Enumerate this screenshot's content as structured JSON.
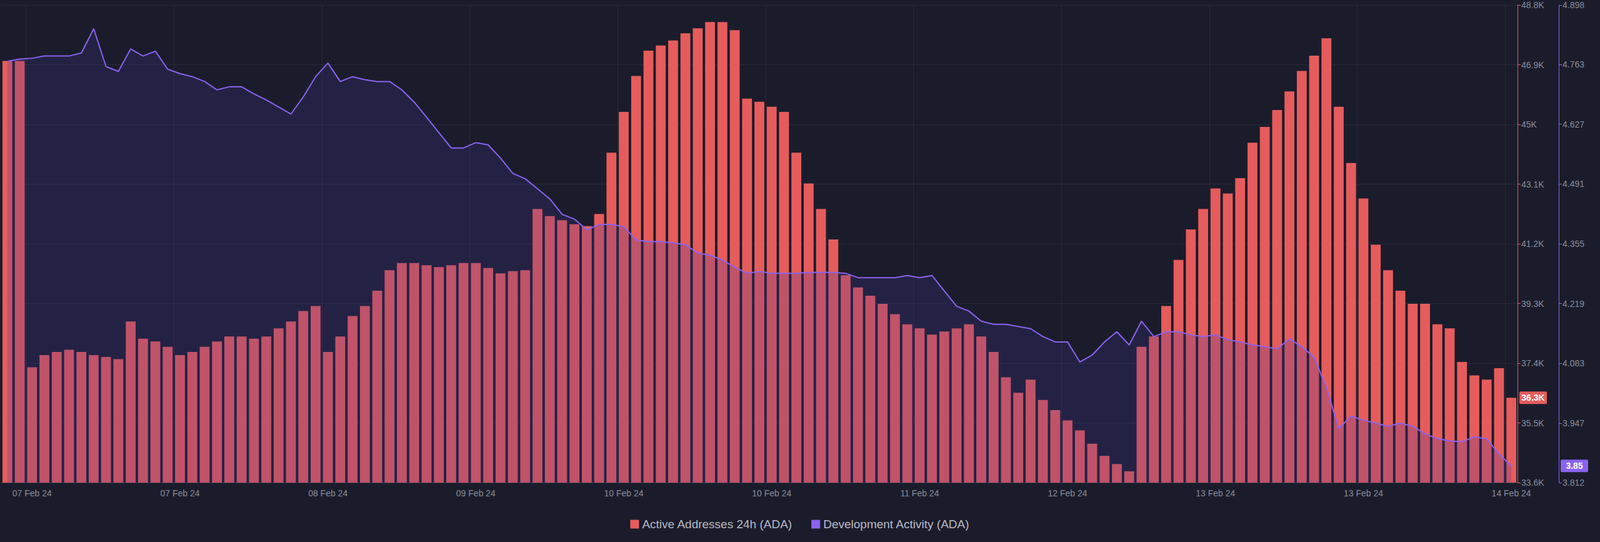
{
  "chart_data": {
    "type": "bar",
    "categories": [
      null,
      null,
      "07 Feb 24",
      null,
      null,
      null,
      null,
      null,
      null,
      null,
      null,
      null,
      null,
      null,
      "07 Feb 24",
      null,
      null,
      null,
      null,
      null,
      null,
      null,
      null,
      null,
      null,
      null,
      "08 Feb 24",
      null,
      null,
      null,
      null,
      null,
      null,
      null,
      null,
      null,
      null,
      null,
      "09 Feb 24",
      null,
      null,
      null,
      null,
      null,
      null,
      null,
      null,
      null,
      null,
      null,
      "10 Feb 24",
      null,
      null,
      null,
      null,
      null,
      null,
      null,
      null,
      null,
      null,
      null,
      "10 Feb 24",
      null,
      null,
      null,
      null,
      null,
      null,
      null,
      null,
      null,
      null,
      null,
      "11 Feb 24",
      null,
      null,
      null,
      null,
      null,
      null,
      null,
      null,
      null,
      null,
      null,
      "12 Feb 24",
      null,
      null,
      null,
      null,
      null,
      null,
      null,
      null,
      null,
      null,
      null,
      "13 Feb 24",
      null,
      null,
      null,
      null,
      null,
      null,
      null,
      null,
      null,
      null,
      null,
      "13 Feb 24",
      null,
      null,
      null,
      null,
      null,
      null,
      null,
      null,
      null,
      null,
      null,
      "14 Feb 24"
    ],
    "series": [
      {
        "name": "Active Addresses 24h (ADA)",
        "type": "bar",
        "color": "#e65c5c",
        "axis": "y",
        "values": [
          47020,
          47020,
          37270,
          37660,
          37760,
          37830,
          37760,
          37660,
          37600,
          37530,
          38730,
          38180,
          38090,
          37920,
          37660,
          37760,
          37920,
          38090,
          38250,
          38250,
          38180,
          38250,
          38510,
          38730,
          39060,
          39220,
          37760,
          38250,
          38900,
          39220,
          39710,
          40360,
          40590,
          40590,
          40520,
          40460,
          40520,
          40590,
          40590,
          40430,
          40260,
          40330,
          40360,
          42310,
          42080,
          41950,
          41820,
          41760,
          42150,
          44100,
          45400,
          46540,
          47350,
          47510,
          47670,
          47900,
          48060,
          48260,
          48260,
          48000,
          45820,
          45720,
          45560,
          45400,
          44100,
          43120,
          42310,
          41340,
          40200,
          39810,
          39550,
          39290,
          38960,
          38640,
          38510,
          38310,
          38410,
          38510,
          38640,
          38250,
          37760,
          36950,
          36460,
          36880,
          36230,
          35910,
          35580,
          35260,
          34840,
          34450,
          34190,
          33960,
          37920,
          38250,
          39220,
          40690,
          41660,
          42310,
          42960,
          42800,
          43290,
          44420,
          44920,
          45460,
          46050,
          46700,
          47190,
          47740,
          45560,
          43770,
          42640,
          41170,
          40360,
          39710,
          39290,
          39290,
          38640,
          38510,
          37440,
          37010,
          36880,
          37240,
          36300
        ]
      },
      {
        "name": "Development Activity (ADA)",
        "type": "line",
        "color": "#8a63f0",
        "axis": "y2",
        "values": [
          4.77,
          4.775,
          4.777,
          4.782,
          4.782,
          4.782,
          4.789,
          4.844,
          4.758,
          4.747,
          4.798,
          4.782,
          4.793,
          4.752,
          4.742,
          4.735,
          4.724,
          4.705,
          4.712,
          4.712,
          4.696,
          4.682,
          4.666,
          4.65,
          4.689,
          4.735,
          4.766,
          4.724,
          4.735,
          4.728,
          4.724,
          4.724,
          4.705,
          4.677,
          4.643,
          4.608,
          4.573,
          4.573,
          4.585,
          4.58,
          4.55,
          4.515,
          4.503,
          4.48,
          4.457,
          4.422,
          4.411,
          4.387,
          4.399,
          4.399,
          4.394,
          4.364,
          4.36,
          4.36,
          4.357,
          4.353,
          4.334,
          4.329,
          4.318,
          4.302,
          4.288,
          4.292,
          4.288,
          4.288,
          4.288,
          4.29,
          4.29,
          4.29,
          4.288,
          4.278,
          4.278,
          4.278,
          4.278,
          4.283,
          4.278,
          4.283,
          4.248,
          4.213,
          4.202,
          4.179,
          4.172,
          4.172,
          4.167,
          4.162,
          4.144,
          4.132,
          4.132,
          4.086,
          4.102,
          4.132,
          4.155,
          4.125,
          4.179,
          4.144,
          4.155,
          4.155,
          4.148,
          4.144,
          4.148,
          4.137,
          4.132,
          4.125,
          4.121,
          4.116,
          4.139,
          4.121,
          4.097,
          4.028,
          3.935,
          3.963,
          3.954,
          3.947,
          3.94,
          3.947,
          3.94,
          3.923,
          3.912,
          3.907,
          3.905,
          3.916,
          3.912,
          3.877,
          3.85
        ]
      }
    ],
    "ylim": [
      33600,
      48800
    ],
    "yticks": [
      {
        "value": 33600,
        "label": "33.6K"
      },
      {
        "value": 35500,
        "label": "35.5K"
      },
      {
        "value": 37400,
        "label": "37.4K"
      },
      {
        "value": 39300,
        "label": "39.3K"
      },
      {
        "value": 41200,
        "label": "41.2K"
      },
      {
        "value": 43100,
        "label": "43.1K"
      },
      {
        "value": 45000,
        "label": "45K"
      },
      {
        "value": 46900,
        "label": "46.9K"
      },
      {
        "value": 48800,
        "label": "48.8K"
      }
    ],
    "y2lim": [
      3.812,
      4.898
    ],
    "y2ticks": [
      3.812,
      3.947,
      4.083,
      4.219,
      4.355,
      4.491,
      4.627,
      4.763,
      4.898
    ],
    "annotations": [
      {
        "text": "36.3K",
        "value": 36300,
        "axis": "y"
      },
      {
        "text": "3.85",
        "value": 3.85,
        "axis": "y2"
      }
    ],
    "legend": "bottom",
    "grid": true
  }
}
